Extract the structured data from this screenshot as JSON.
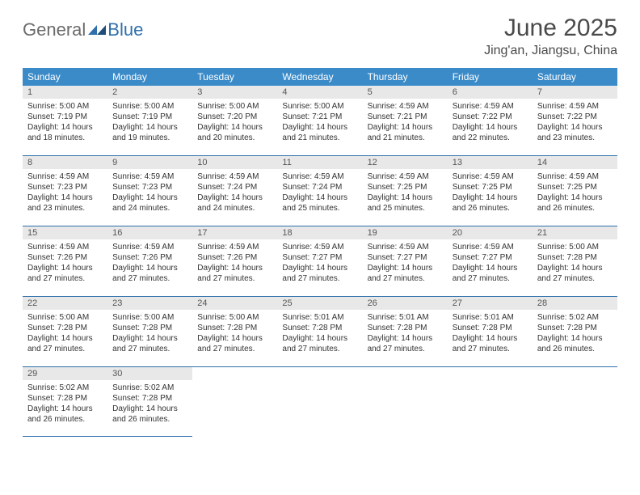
{
  "logo": {
    "general": "General",
    "blue": "Blue"
  },
  "title": "June 2025",
  "location": "Jing'an, Jiangsu, China",
  "colors": {
    "header_bg": "#3b8bc9",
    "row_border": "#2f6fab",
    "day_number_bg": "#e8e8e8",
    "text": "#333333",
    "title_text": "#4a4a4a",
    "logo_gray": "#6b6b6b",
    "logo_blue": "#2f6fab"
  },
  "weekdays": [
    "Sunday",
    "Monday",
    "Tuesday",
    "Wednesday",
    "Thursday",
    "Friday",
    "Saturday"
  ],
  "weeks": [
    [
      {
        "n": "1",
        "sr": "5:00 AM",
        "ss": "7:19 PM",
        "dl": "14 hours and 18 minutes."
      },
      {
        "n": "2",
        "sr": "5:00 AM",
        "ss": "7:19 PM",
        "dl": "14 hours and 19 minutes."
      },
      {
        "n": "3",
        "sr": "5:00 AM",
        "ss": "7:20 PM",
        "dl": "14 hours and 20 minutes."
      },
      {
        "n": "4",
        "sr": "5:00 AM",
        "ss": "7:21 PM",
        "dl": "14 hours and 21 minutes."
      },
      {
        "n": "5",
        "sr": "4:59 AM",
        "ss": "7:21 PM",
        "dl": "14 hours and 21 minutes."
      },
      {
        "n": "6",
        "sr": "4:59 AM",
        "ss": "7:22 PM",
        "dl": "14 hours and 22 minutes."
      },
      {
        "n": "7",
        "sr": "4:59 AM",
        "ss": "7:22 PM",
        "dl": "14 hours and 23 minutes."
      }
    ],
    [
      {
        "n": "8",
        "sr": "4:59 AM",
        "ss": "7:23 PM",
        "dl": "14 hours and 23 minutes."
      },
      {
        "n": "9",
        "sr": "4:59 AM",
        "ss": "7:23 PM",
        "dl": "14 hours and 24 minutes."
      },
      {
        "n": "10",
        "sr": "4:59 AM",
        "ss": "7:24 PM",
        "dl": "14 hours and 24 minutes."
      },
      {
        "n": "11",
        "sr": "4:59 AM",
        "ss": "7:24 PM",
        "dl": "14 hours and 25 minutes."
      },
      {
        "n": "12",
        "sr": "4:59 AM",
        "ss": "7:25 PM",
        "dl": "14 hours and 25 minutes."
      },
      {
        "n": "13",
        "sr": "4:59 AM",
        "ss": "7:25 PM",
        "dl": "14 hours and 26 minutes."
      },
      {
        "n": "14",
        "sr": "4:59 AM",
        "ss": "7:25 PM",
        "dl": "14 hours and 26 minutes."
      }
    ],
    [
      {
        "n": "15",
        "sr": "4:59 AM",
        "ss": "7:26 PM",
        "dl": "14 hours and 27 minutes."
      },
      {
        "n": "16",
        "sr": "4:59 AM",
        "ss": "7:26 PM",
        "dl": "14 hours and 27 minutes."
      },
      {
        "n": "17",
        "sr": "4:59 AM",
        "ss": "7:26 PM",
        "dl": "14 hours and 27 minutes."
      },
      {
        "n": "18",
        "sr": "4:59 AM",
        "ss": "7:27 PM",
        "dl": "14 hours and 27 minutes."
      },
      {
        "n": "19",
        "sr": "4:59 AM",
        "ss": "7:27 PM",
        "dl": "14 hours and 27 minutes."
      },
      {
        "n": "20",
        "sr": "4:59 AM",
        "ss": "7:27 PM",
        "dl": "14 hours and 27 minutes."
      },
      {
        "n": "21",
        "sr": "5:00 AM",
        "ss": "7:28 PM",
        "dl": "14 hours and 27 minutes."
      }
    ],
    [
      {
        "n": "22",
        "sr": "5:00 AM",
        "ss": "7:28 PM",
        "dl": "14 hours and 27 minutes."
      },
      {
        "n": "23",
        "sr": "5:00 AM",
        "ss": "7:28 PM",
        "dl": "14 hours and 27 minutes."
      },
      {
        "n": "24",
        "sr": "5:00 AM",
        "ss": "7:28 PM",
        "dl": "14 hours and 27 minutes."
      },
      {
        "n": "25",
        "sr": "5:01 AM",
        "ss": "7:28 PM",
        "dl": "14 hours and 27 minutes."
      },
      {
        "n": "26",
        "sr": "5:01 AM",
        "ss": "7:28 PM",
        "dl": "14 hours and 27 minutes."
      },
      {
        "n": "27",
        "sr": "5:01 AM",
        "ss": "7:28 PM",
        "dl": "14 hours and 27 minutes."
      },
      {
        "n": "28",
        "sr": "5:02 AM",
        "ss": "7:28 PM",
        "dl": "14 hours and 26 minutes."
      }
    ],
    [
      {
        "n": "29",
        "sr": "5:02 AM",
        "ss": "7:28 PM",
        "dl": "14 hours and 26 minutes."
      },
      {
        "n": "30",
        "sr": "5:02 AM",
        "ss": "7:28 PM",
        "dl": "14 hours and 26 minutes."
      },
      null,
      null,
      null,
      null,
      null
    ]
  ],
  "labels": {
    "sunrise": "Sunrise:",
    "sunset": "Sunset:",
    "daylight": "Daylight:"
  }
}
